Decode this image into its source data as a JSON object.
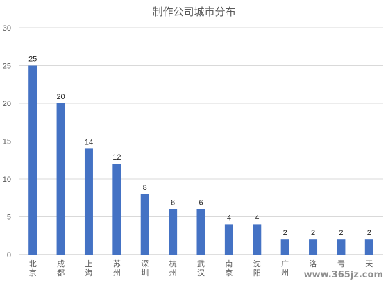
{
  "chart_data": {
    "type": "bar",
    "title": "制作公司城市分布",
    "categories": [
      "北京",
      "成都",
      "上海",
      "苏州",
      "深圳",
      "杭州",
      "武汉",
      "南京",
      "沈阳",
      "广州",
      "洛",
      "青",
      "天"
    ],
    "values": [
      25,
      20,
      14,
      12,
      8,
      6,
      6,
      4,
      4,
      2,
      2,
      2,
      2
    ],
    "ylim": [
      0,
      30
    ],
    "yticks": [
      0,
      5,
      10,
      15,
      20,
      25,
      30
    ],
    "grid": true,
    "legend": "none",
    "bar_color": "#4472C4",
    "xlabel": "",
    "ylabel": ""
  },
  "watermark": "www.365jz.com"
}
